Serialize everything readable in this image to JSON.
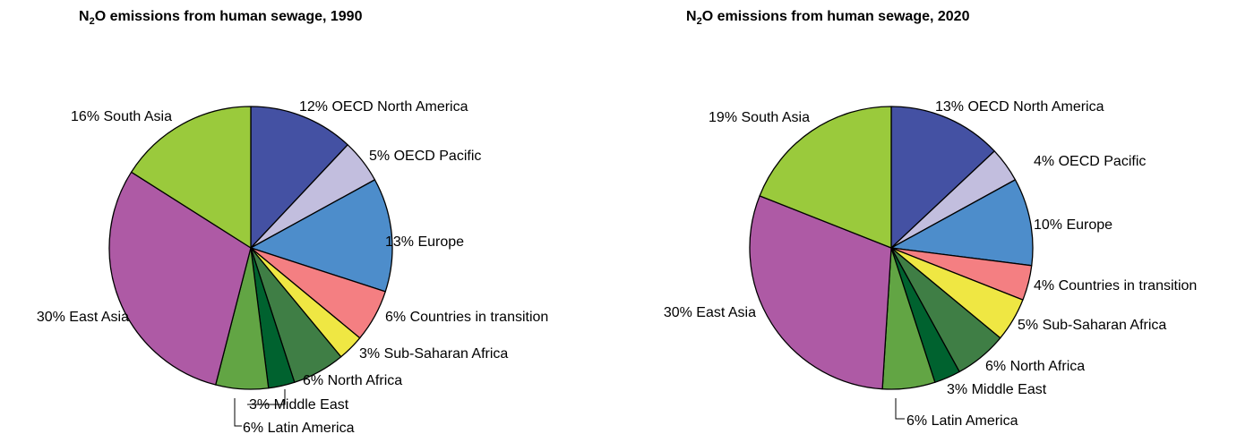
{
  "chart_data": [
    {
      "type": "pie",
      "title": {
        "main": "N",
        "sub": "2",
        "rest": "O emissions from human sewage, 1990"
      },
      "labels": [
        "OECD North America",
        "OECD Pacific",
        "Europe",
        "Countries in transition",
        "Sub-Saharan Africa",
        "North Africa",
        "Middle East",
        "Latin America",
        "East Asia",
        "South Asia"
      ],
      "values": [
        12,
        5,
        13,
        6,
        3,
        6,
        3,
        6,
        30,
        16
      ],
      "value_labels": [
        "12%",
        "5%",
        "13%",
        "6%",
        "3%",
        "6%",
        "3%",
        "6%",
        "30%",
        "16%"
      ],
      "colors": [
        "#4451A3",
        "#C2BEDE",
        "#4D8DCB",
        "#F47F82",
        "#EFE743",
        "#3F7E45",
        "#00622F",
        "#62A544",
        "#AE5AA5",
        "#9ACA3C"
      ],
      "start_angle": "12 o'clock, clockwise"
    },
    {
      "type": "pie",
      "title": {
        "main": "N",
        "sub": "2",
        "rest": "O emissions from human sewage, 2020"
      },
      "labels": [
        "OECD North America",
        "OECD Pacific",
        "Europe",
        "Countries in transition",
        "Sub-Saharan Africa",
        "North Africa",
        "Middle East",
        "Latin America",
        "East Asia",
        "South Asia"
      ],
      "values": [
        13,
        4,
        10,
        4,
        5,
        6,
        3,
        6,
        30,
        19
      ],
      "value_labels": [
        "13%",
        "4%",
        "10%",
        "4%",
        "5%",
        "6%",
        "3%",
        "6%",
        "30%",
        "19%"
      ],
      "colors": [
        "#4451A3",
        "#C2BEDE",
        "#4D8DCB",
        "#F47F82",
        "#EFE743",
        "#3F7E45",
        "#00622F",
        "#62A544",
        "#AE5AA5",
        "#9ACA3C"
      ],
      "start_angle": "12 o'clock, clockwise"
    }
  ]
}
